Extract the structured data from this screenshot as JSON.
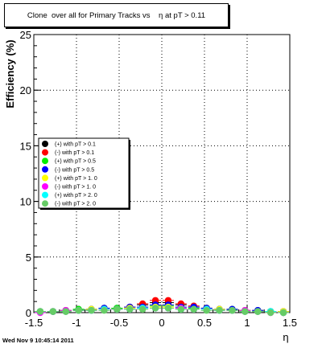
{
  "title": "Clone  over all for Primary Tracks vs    η at pT > 0.11",
  "timestamp": "Wed Nov  9 10:45:14 2011",
  "chart_data": {
    "type": "scatter",
    "title": "Clone  over all for Primary Tracks vs    η at pT > 0.11",
    "xlabel": "η",
    "ylabel": "Efficiency (%)",
    "xlim": [
      -1.5,
      1.5
    ],
    "ylim": [
      0,
      25
    ],
    "xticks": [
      "-1.5",
      "-1",
      "-0.5",
      "0",
      "0.5",
      "1",
      "1.5"
    ],
    "yticks": [
      "0",
      "5",
      "10",
      "15",
      "20",
      "25"
    ],
    "grid": true,
    "legend_position": "left-middle",
    "x": [
      -1.425,
      -1.275,
      -1.125,
      -0.975,
      -0.825,
      -0.675,
      -0.525,
      -0.375,
      -0.225,
      -0.075,
      0.075,
      0.225,
      0.375,
      0.525,
      0.675,
      0.825,
      0.975,
      1.125,
      1.275,
      1.425
    ],
    "series": [
      {
        "name": "(+) with pT > 0.1",
        "color": "#000000",
        "values": [
          0.1,
          0.1,
          0.2,
          0.3,
          0.3,
          0.4,
          0.4,
          0.5,
          0.7,
          0.9,
          0.9,
          0.7,
          0.5,
          0.4,
          0.3,
          0.3,
          0.2,
          0.2,
          0.1,
          0.1
        ]
      },
      {
        "name": "(-) with pT > 0.1",
        "color": "#ff0000",
        "values": [
          0.1,
          0.1,
          0.1,
          0.2,
          0.3,
          0.3,
          0.3,
          0.5,
          0.8,
          1.1,
          1.1,
          0.8,
          0.6,
          0.4,
          0.3,
          0.2,
          0.1,
          0.1,
          0.1,
          0.0
        ]
      },
      {
        "name": "(+) with pT > 0.5",
        "color": "#00ee00",
        "values": [
          0.1,
          0.1,
          0.2,
          0.3,
          0.3,
          0.4,
          0.4,
          0.4,
          0.5,
          0.6,
          0.6,
          0.5,
          0.4,
          0.4,
          0.3,
          0.3,
          0.2,
          0.1,
          0.1,
          0.0
        ]
      },
      {
        "name": "(-) with pT > 0.5",
        "color": "#0000ff",
        "values": [
          0.1,
          0.1,
          0.2,
          0.2,
          0.3,
          0.4,
          0.3,
          0.5,
          0.5,
          0.7,
          0.7,
          0.5,
          0.5,
          0.4,
          0.3,
          0.3,
          0.2,
          0.2,
          0.1,
          0.1
        ]
      },
      {
        "name": "(+) with pT > 1. 0",
        "color": "#ffff00",
        "values": [
          0.1,
          0.1,
          0.2,
          0.2,
          0.3,
          0.3,
          0.3,
          0.4,
          0.4,
          0.5,
          0.5,
          0.4,
          0.3,
          0.3,
          0.3,
          0.2,
          0.2,
          0.1,
          0.1,
          0.1
        ]
      },
      {
        "name": "(-) with pT > 1. 0",
        "color": "#ff00ff",
        "values": [
          0.0,
          0.1,
          0.2,
          0.2,
          0.2,
          0.3,
          0.3,
          0.3,
          0.4,
          0.4,
          0.4,
          0.4,
          0.3,
          0.3,
          0.2,
          0.2,
          0.2,
          0.1,
          0.0,
          0.0
        ]
      },
      {
        "name": "(+) with pT > 2. 0",
        "color": "#00ffff",
        "values": [
          0.1,
          0.1,
          0.1,
          0.2,
          0.2,
          0.3,
          0.3,
          0.3,
          0.4,
          0.4,
          0.4,
          0.3,
          0.3,
          0.3,
          0.2,
          0.2,
          0.1,
          0.1,
          0.1,
          0.0
        ]
      },
      {
        "name": "(-) with pT > 2. 0",
        "color": "#66cc66",
        "values": [
          0.1,
          0.1,
          0.1,
          0.2,
          0.2,
          0.2,
          0.3,
          0.3,
          0.3,
          0.4,
          0.4,
          0.3,
          0.3,
          0.2,
          0.2,
          0.2,
          0.1,
          0.1,
          0.0,
          0.0
        ]
      }
    ]
  }
}
